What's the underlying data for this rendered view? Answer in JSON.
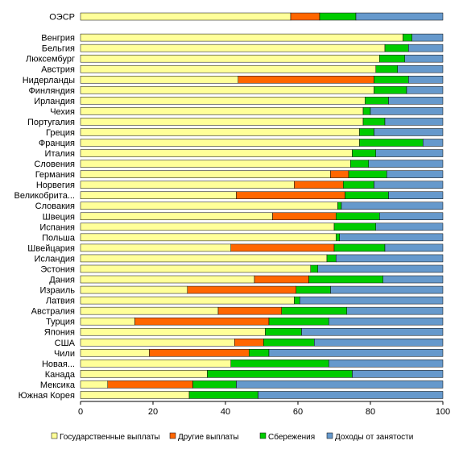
{
  "chart_data": {
    "type": "bar",
    "orientation": "horizontal",
    "stacked": true,
    "xlim": [
      0,
      100
    ],
    "xticks": [
      "0",
      "20",
      "40",
      "60",
      "80",
      "100"
    ],
    "grid": false,
    "legend_position": "bottom",
    "categories": [
      "ОЭСР",
      "",
      "Венгрия",
      "Бельгия",
      "Люксембург",
      "Австрия",
      "Нидерланды",
      "Финляндия",
      "Ирландия",
      "Чехия",
      "Португалия",
      "Греция",
      "Франция",
      "Италия",
      "Словения",
      "Германия",
      "Норвегия",
      "Великобрита...",
      "Словакия",
      "Швеция",
      "Испания",
      "Польша",
      "Швейцария",
      "Исландия",
      "Эстония",
      "Дания",
      "Израиль",
      "Латвия",
      "Австралия",
      "Турция",
      "Япония",
      "США",
      "Чили",
      "Новая...",
      "Канада",
      "Мексика",
      "Южная Корея"
    ],
    "series": [
      {
        "name": "Государственные выплаты",
        "color": "#ffff99",
        "values": [
          58,
          null,
          89,
          84,
          82.5,
          81.5,
          43.5,
          81,
          78.5,
          78,
          78,
          77,
          77,
          75,
          74.5,
          69,
          59,
          43,
          71,
          53,
          70,
          70.5,
          41.5,
          68,
          63.5,
          48,
          29.5,
          59,
          38,
          15,
          51,
          42.5,
          19,
          41.5,
          35,
          7.5,
          30
        ]
      },
      {
        "name": "Другие выплаты",
        "color": "#ff6600",
        "values": [
          8,
          null,
          0,
          0,
          0,
          0,
          37.5,
          0,
          0,
          0,
          0,
          0,
          0,
          0,
          0,
          5,
          13.5,
          30,
          0,
          17.5,
          0,
          0,
          28.5,
          0,
          0,
          15,
          30,
          0,
          17.5,
          37,
          0,
          8,
          27.5,
          0,
          0,
          23.5,
          0
        ]
      },
      {
        "name": "Сбережения",
        "color": "#00cc00",
        "values": [
          10,
          null,
          2.5,
          6.5,
          7,
          6,
          9.5,
          9,
          6.5,
          2,
          6,
          4,
          17.5,
          6.5,
          5,
          10.5,
          8.5,
          12,
          1,
          12,
          11.5,
          1,
          14,
          2.5,
          2,
          20.5,
          9.5,
          1.5,
          18,
          16.5,
          10,
          14,
          5.5,
          27,
          40,
          12,
          19
        ]
      },
      {
        "name": "Доходы от занятости",
        "color": "#6699cc",
        "values": [
          24,
          null,
          8.5,
          9.5,
          10.5,
          12.5,
          9.5,
          10,
          15,
          20,
          16,
          19,
          5.5,
          18.5,
          20.5,
          15.5,
          19,
          15,
          28,
          17.5,
          18.5,
          28.5,
          16,
          29.5,
          34.5,
          16.5,
          31,
          39.5,
          26.5,
          31.5,
          39,
          35.5,
          48,
          31.5,
          25,
          57,
          51
        ]
      }
    ]
  }
}
